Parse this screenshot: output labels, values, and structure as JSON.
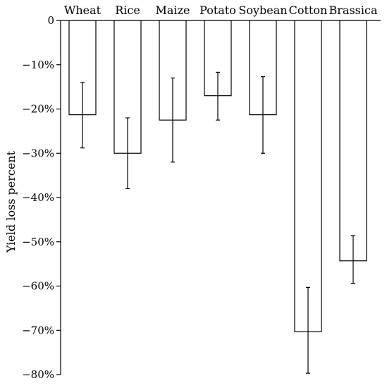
{
  "chart_data": {
    "type": "bar",
    "title": "",
    "xlabel": "",
    "ylabel": "Yield loss percent",
    "ylim": [
      -80,
      0
    ],
    "yticks": [
      0,
      -10,
      -20,
      -30,
      -40,
      -50,
      -60,
      -70,
      -80
    ],
    "ytick_labels": [
      "0",
      "−10%",
      "−20%",
      "−30%",
      "−40%",
      "−50%",
      "−60%",
      "−70%",
      "−80%"
    ],
    "categories": [
      "Wheat",
      "Rice",
      "Maize",
      "Potato",
      "Soybean",
      "Cotton",
      "Brassica"
    ],
    "values": [
      -21.3,
      -30,
      -22.5,
      -17,
      -21.3,
      -70.3,
      -54.3
    ],
    "error_low": [
      -28.8,
      -38,
      -32,
      -22.5,
      -30,
      -79.7,
      -59.4
    ],
    "error_high": [
      -14,
      -22,
      -13,
      -11.7,
      -12.7,
      -60.3,
      -48.6
    ],
    "grid": false,
    "legend": "none",
    "colors": {
      "bar_fill": "#ffffff",
      "stroke": "#000000"
    }
  }
}
